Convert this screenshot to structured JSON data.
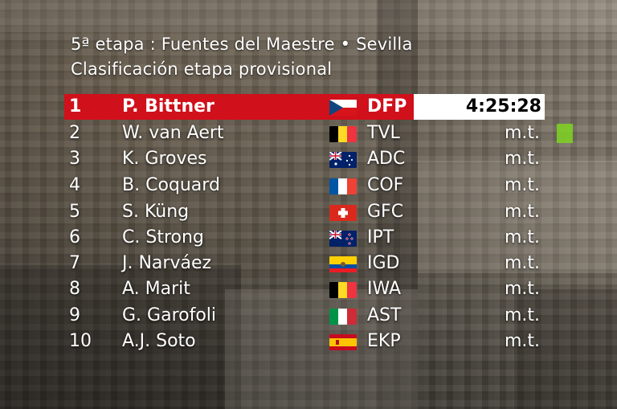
{
  "header": {
    "title": "5ª etapa : Fuentes del Maestre • Sevilla",
    "subtitle": "Clasificación etapa provisional"
  },
  "colors": {
    "leader_bar": "#d0101b",
    "time_box": "#ffffff"
  },
  "standings": [
    {
      "pos": "1",
      "name": "P. Bittner",
      "flag": "czech-flag",
      "team": "DFP",
      "time": "4:25:28"
    },
    {
      "pos": "2",
      "name": "W. van Aert",
      "flag": "belgium-flag",
      "team": "TVL",
      "time": "m.t."
    },
    {
      "pos": "3",
      "name": "K. Groves",
      "flag": "australia-flag",
      "team": "ADC",
      "time": "m.t."
    },
    {
      "pos": "4",
      "name": "B. Coquard",
      "flag": "france-flag",
      "team": "COF",
      "time": "m.t."
    },
    {
      "pos": "5",
      "name": "S. Küng",
      "flag": "switzerland-flag",
      "team": "GFC",
      "time": "m.t."
    },
    {
      "pos": "6",
      "name": "C. Strong",
      "flag": "new-zealand-flag",
      "team": "IPT",
      "time": "m.t."
    },
    {
      "pos": "7",
      "name": "J. Narváez",
      "flag": "ecuador-flag",
      "team": "IGD",
      "time": "m.t."
    },
    {
      "pos": "8",
      "name": "A. Marit",
      "flag": "belgium-flag",
      "team": "IWA",
      "time": "m.t."
    },
    {
      "pos": "9",
      "name": "G. Garofoli",
      "flag": "italy-flag",
      "team": "AST",
      "time": "m.t."
    },
    {
      "pos": "10",
      "name": "A.J. Soto",
      "flag": "spain-flag",
      "team": "EKP",
      "time": "m.t."
    }
  ]
}
